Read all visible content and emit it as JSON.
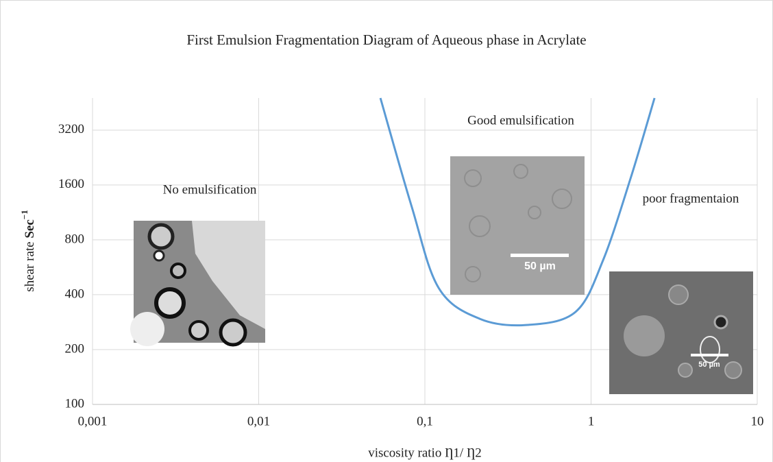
{
  "chart_data": {
    "type": "line",
    "title": "First Emulsion Fragmentation Diagram of Aqueous phase in Acrylate",
    "xlabel": "viscosity ratio  Ƞ1/ Ƞ2",
    "ylabel": "shear rate",
    "ylabel_unit": "Sec",
    "ylabel_exponent": "−1",
    "x": [
      0.054,
      0.083,
      0.121,
      0.214,
      0.416,
      0.807,
      1.18,
      1.73,
      2.41
    ],
    "values": [
      4800,
      1231,
      436,
      295,
      273,
      322,
      617,
      1743,
      4800
    ],
    "color": "#5b9bd5",
    "xscale": "log",
    "yscale": "log",
    "xlim": [
      0.001,
      10
    ],
    "ylim": [
      100,
      4800
    ],
    "xticks": [
      {
        "value": 0.001,
        "label": "0,001"
      },
      {
        "value": 0.01,
        "label": "0,01"
      },
      {
        "value": 0.1,
        "label": "0,1"
      },
      1,
      10
    ],
    "yticks": [
      100,
      200,
      400,
      800,
      1600,
      3200
    ],
    "grid": true,
    "annotations": [
      "No emulsification",
      "Good emulsification",
      "poor fragmentaion"
    ],
    "image_labels": [
      "50 µm",
      "50 µm"
    ]
  }
}
